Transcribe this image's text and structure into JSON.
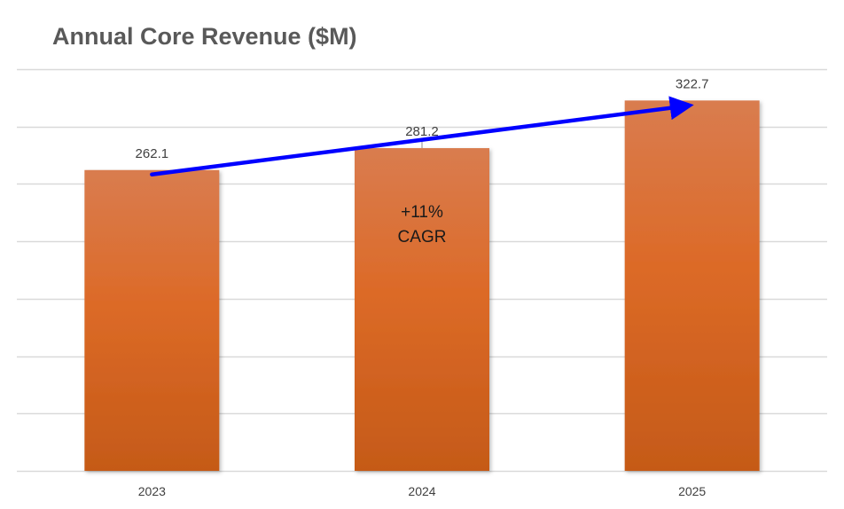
{
  "chart_data": {
    "type": "bar",
    "title": "Annual Core Revenue ($M)",
    "xlabel": "",
    "ylabel": "",
    "categories": [
      "2023",
      "2024",
      "2025"
    ],
    "values": [
      262.1,
      281.2,
      322.7
    ],
    "data_labels": [
      "262.1",
      "281.2",
      "322.7"
    ],
    "ylim": [
      0,
      350
    ],
    "grid": true,
    "legend": "none",
    "annotation": {
      "lines": [
        "+11%",
        "CAGR"
      ],
      "arrow": {
        "from_category": "2023",
        "to_category": "2025"
      }
    }
  },
  "colors": {
    "bar_top": "#d97c4f",
    "bar_mid": "#dc6a27",
    "bar_bottom": "#c55a18",
    "arrow": "#0000ff",
    "grid": "#d9d9d9",
    "leader": "#8c8c8c"
  }
}
